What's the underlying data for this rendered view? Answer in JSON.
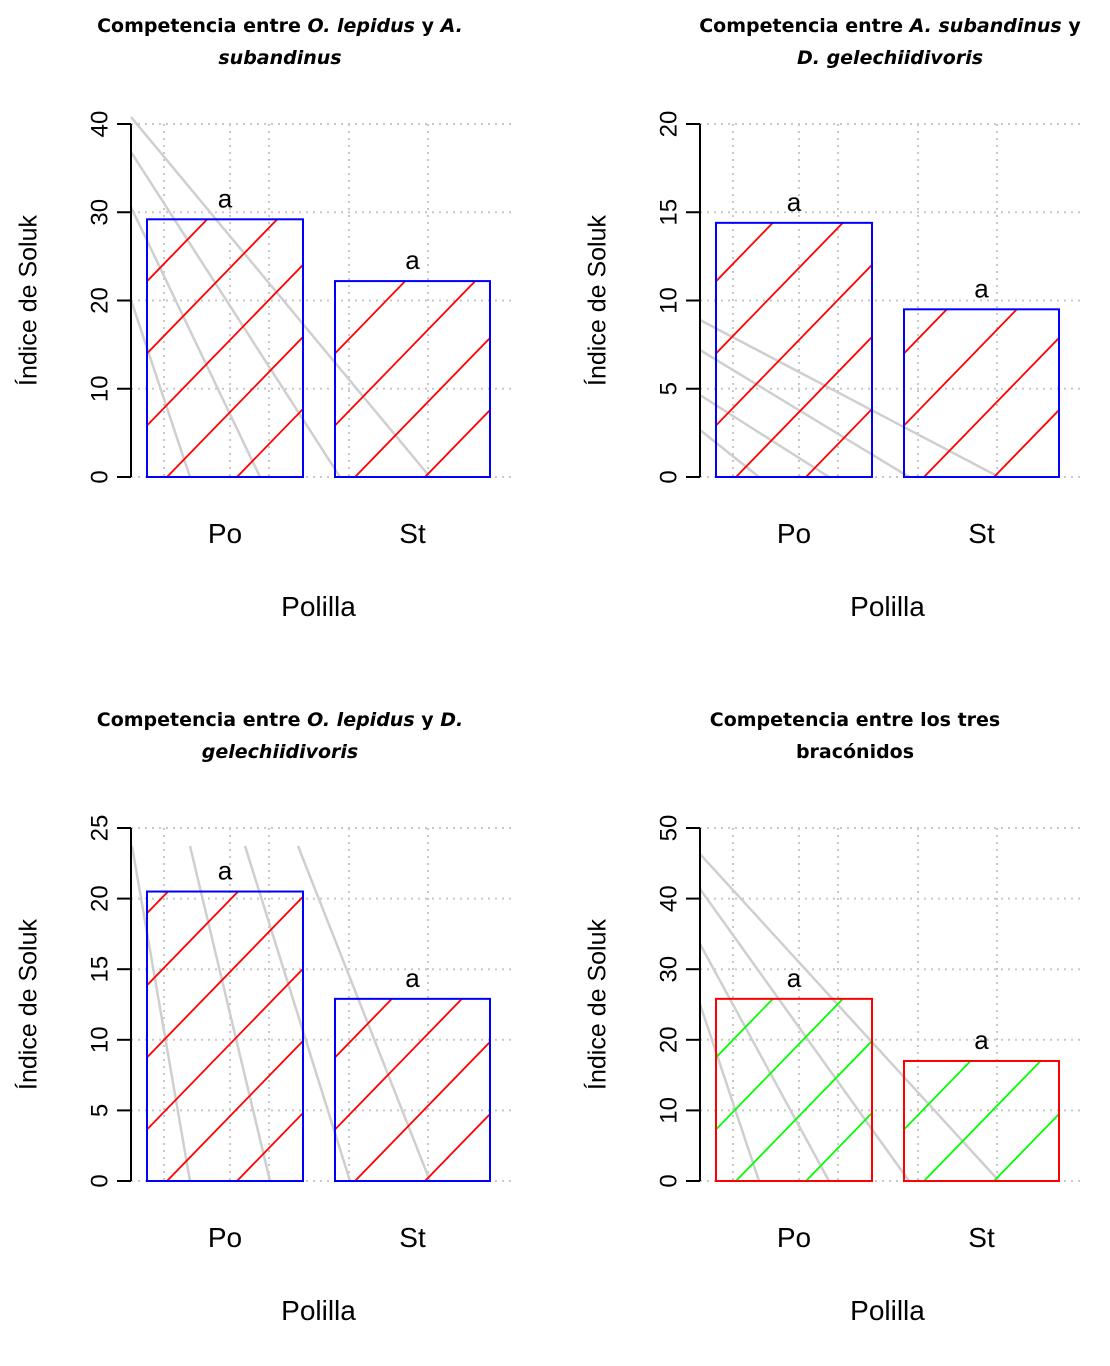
{
  "chart_data": [
    {
      "type": "bar",
      "title_parts": [
        {
          "text": "Competencia entre ",
          "italic": false
        },
        {
          "text": "O. lepidus",
          "italic": true
        },
        {
          "text": " y ",
          "italic": false
        },
        {
          "text": "A. subandinus",
          "italic": true
        }
      ],
      "xlabel": "Polilla",
      "ylabel": "Índice de Soluk",
      "categories": [
        "Po",
        "St"
      ],
      "values": [
        29.2,
        22.2
      ],
      "labels": [
        "a",
        "a"
      ],
      "ylim": [
        0,
        40
      ],
      "yticks": [
        0,
        10,
        20,
        30,
        40
      ],
      "bar_border_color": "#0000ff",
      "hatch_color": "#ff0000",
      "grid": true
    },
    {
      "type": "bar",
      "title_parts": [
        {
          "text": "Competencia entre ",
          "italic": false
        },
        {
          "text": "A. subandinus",
          "italic": true
        },
        {
          "text": " y ",
          "italic": false
        },
        {
          "text": "D. gelechiidivoris",
          "italic": true
        }
      ],
      "xlabel": "Polilla",
      "ylabel": "Índice de Soluk",
      "categories": [
        "Po",
        "St"
      ],
      "values": [
        14.4,
        9.5
      ],
      "labels": [
        "a",
        "a"
      ],
      "ylim": [
        0,
        20
      ],
      "yticks": [
        0,
        5,
        10,
        15,
        20
      ],
      "bar_border_color": "#0000ff",
      "hatch_color": "#ff0000",
      "grid": true
    },
    {
      "type": "bar",
      "title_parts": [
        {
          "text": "Competencia entre ",
          "italic": false
        },
        {
          "text": "O. lepidus",
          "italic": true
        },
        {
          "text": " y ",
          "italic": false
        },
        {
          "text": "D. gelechiidivoris",
          "italic": true
        }
      ],
      "xlabel": "Polilla",
      "ylabel": "Índice de Soluk",
      "categories": [
        "Po",
        "St"
      ],
      "values": [
        20.5,
        12.9
      ],
      "labels": [
        "a",
        "a"
      ],
      "ylim": [
        0,
        25
      ],
      "yticks": [
        0,
        5,
        10,
        15,
        20,
        25
      ],
      "bar_border_color": "#0000ff",
      "hatch_color": "#ff0000",
      "grid": true
    },
    {
      "type": "bar",
      "title_parts": [
        {
          "text": "Competencia entre los tres bracónidos",
          "italic": false
        }
      ],
      "xlabel": "Polilla",
      "ylabel": "Índice de Soluk",
      "categories": [
        "Po",
        "St"
      ],
      "values": [
        25.8,
        17.0
      ],
      "labels": [
        "a",
        "a"
      ],
      "ylim": [
        0,
        50
      ],
      "yticks": [
        0,
        10,
        20,
        30,
        40,
        50
      ],
      "bar_border_color": "#ff0000",
      "hatch_color": "#00ff00",
      "grid": true
    }
  ]
}
